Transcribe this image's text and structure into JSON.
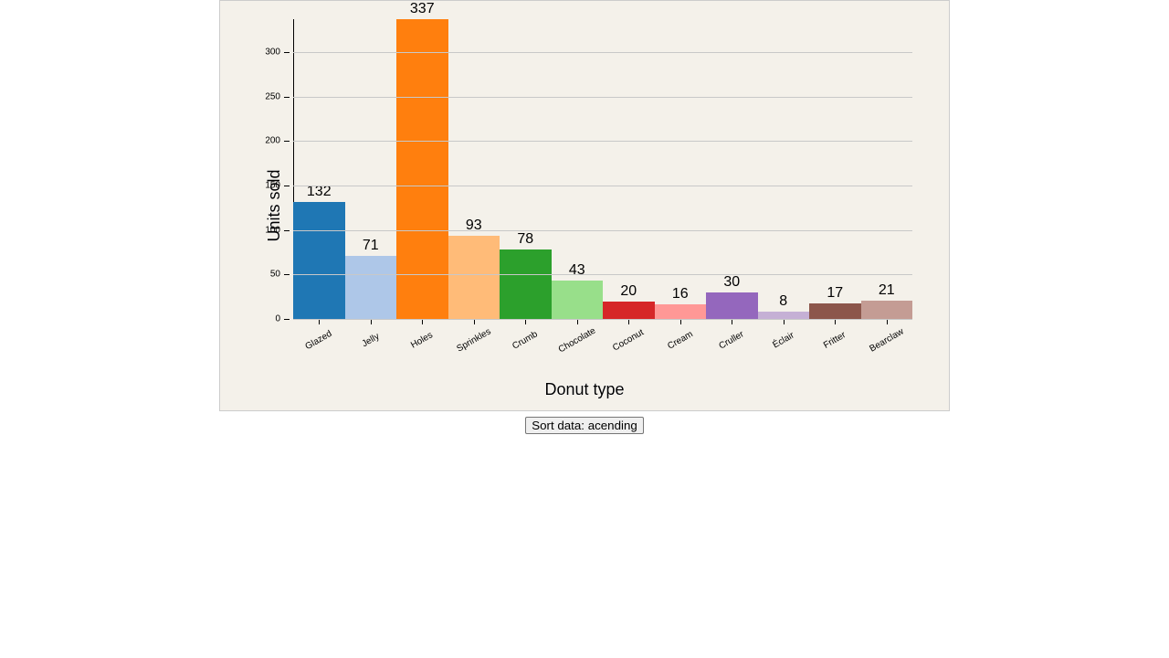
{
  "chart": {
    "type": "bar",
    "background_color": "#f4f1ea",
    "frame_border_color": "#cccccc",
    "grid_color": "#c8c8c8",
    "axis_color": "#000000",
    "ylabel": "Units sold",
    "xlabel": "Donut type",
    "axis_label_fontsize": 18,
    "value_label_fontsize": 16,
    "tick_label_fontsize": 10,
    "x_tick_rotation_deg": -30,
    "ylim": [
      0,
      337
    ],
    "yticks": [
      0,
      50,
      100,
      150,
      200,
      250,
      300
    ],
    "data": [
      {
        "name": "Glazed",
        "value": 132,
        "color": "#1f77b4"
      },
      {
        "name": "Jelly",
        "value": 71,
        "color": "#aec7e8"
      },
      {
        "name": "Holes",
        "value": 337,
        "color": "#ff7f0e"
      },
      {
        "name": "Sprinkles",
        "value": 93,
        "color": "#ffbb78"
      },
      {
        "name": "Crumb",
        "value": 78,
        "color": "#2ca02c"
      },
      {
        "name": "Chocolate",
        "value": 43,
        "color": "#98df8a"
      },
      {
        "name": "Coconut",
        "value": 20,
        "color": "#d62728"
      },
      {
        "name": "Cream",
        "value": 16,
        "color": "#ff9896"
      },
      {
        "name": "Cruller",
        "value": 30,
        "color": "#9467bd"
      },
      {
        "name": "Éclair",
        "value": 8,
        "color": "#c5b0d5"
      },
      {
        "name": "Fritter",
        "value": 17,
        "color": "#8c564b"
      },
      {
        "name": "Bearclaw",
        "value": 21,
        "color": "#c49c94"
      }
    ]
  },
  "controls": {
    "sort_button_label": "Sort data: acending"
  }
}
